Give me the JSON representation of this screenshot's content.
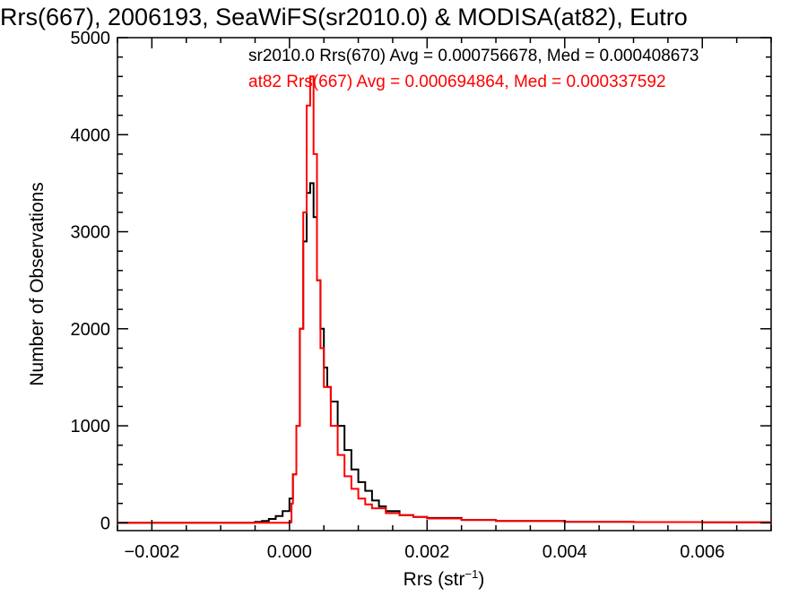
{
  "chart_data": {
    "type": "histogram",
    "title": "Rrs(667), 2006193, SeaWiFS(sr2010.0) & MODISA(at82), Eutro",
    "xlabel": "Rrs (str",
    "xlabel_superscript": "−1",
    "xlabel_suffix": ")",
    "ylabel": "Number of Observations",
    "xlim": [
      -0.0025,
      0.007
    ],
    "ylim": [
      -80,
      5000
    ],
    "x_ticks": [
      -0.002,
      0.0,
      0.002,
      0.004,
      0.006
    ],
    "x_tick_labels": [
      "−0.002",
      "0.000",
      "0.002",
      "0.004",
      "0.006"
    ],
    "y_ticks": [
      0,
      1000,
      2000,
      3000,
      4000,
      5000
    ],
    "y_tick_labels": [
      "0",
      "1000",
      "2000",
      "3000",
      "4000",
      "5000"
    ],
    "grid": false,
    "legend_position": "top-right",
    "series": [
      {
        "name": "sr2010.0 Rrs(670) Avg = 0.000756678, Med = 0.000408673",
        "color": "#000000",
        "points": [
          [
            -0.0025,
            0
          ],
          [
            -0.0006,
            0
          ],
          [
            -0.0005,
            10
          ],
          [
            -0.0004,
            20
          ],
          [
            -0.0003,
            40
          ],
          [
            -0.0002,
            70
          ],
          [
            -0.0001,
            120
          ],
          [
            0.0,
            250
          ],
          [
            5e-05,
            500
          ],
          [
            0.0001,
            1000
          ],
          [
            0.00015,
            2000
          ],
          [
            0.0002,
            2900
          ],
          [
            0.00025,
            3400
          ],
          [
            0.0003,
            3500
          ],
          [
            0.00035,
            3150
          ],
          [
            0.0004,
            2500
          ],
          [
            0.00045,
            2000
          ],
          [
            0.0005,
            1600
          ],
          [
            0.00055,
            1400
          ],
          [
            0.0006,
            1250
          ],
          [
            0.0007,
            1000
          ],
          [
            0.0008,
            750
          ],
          [
            0.0009,
            550
          ],
          [
            0.001,
            420
          ],
          [
            0.0011,
            330
          ],
          [
            0.0012,
            230
          ],
          [
            0.0013,
            170
          ],
          [
            0.0014,
            120
          ],
          [
            0.0016,
            80
          ],
          [
            0.0018,
            60
          ],
          [
            0.002,
            50
          ],
          [
            0.0025,
            30
          ],
          [
            0.003,
            20
          ],
          [
            0.004,
            10
          ],
          [
            0.005,
            8
          ],
          [
            0.006,
            5
          ],
          [
            0.007,
            3
          ]
        ]
      },
      {
        "name": "at82 Rrs(667) Avg = 0.000694864, Med = 0.000337592",
        "color": "#ff0000",
        "points": [
          [
            -0.0025,
            0
          ],
          [
            -0.0001,
            0
          ],
          [
            0.0,
            5
          ],
          [
            3e-05,
            200
          ],
          [
            5e-05,
            500
          ],
          [
            0.0001,
            1000
          ],
          [
            0.00015,
            2000
          ],
          [
            0.0002,
            3200
          ],
          [
            0.00025,
            4300
          ],
          [
            0.0003,
            4600
          ],
          [
            0.00035,
            3800
          ],
          [
            0.0004,
            2500
          ],
          [
            0.00045,
            1800
          ],
          [
            0.0005,
            1400
          ],
          [
            0.0006,
            1000
          ],
          [
            0.0007,
            700
          ],
          [
            0.0008,
            480
          ],
          [
            0.0009,
            350
          ],
          [
            0.001,
            250
          ],
          [
            0.0011,
            190
          ],
          [
            0.0012,
            150
          ],
          [
            0.0014,
            100
          ],
          [
            0.0016,
            80
          ],
          [
            0.0018,
            60
          ],
          [
            0.002,
            45
          ],
          [
            0.0025,
            30
          ],
          [
            0.003,
            20
          ],
          [
            0.004,
            12
          ],
          [
            0.005,
            8
          ],
          [
            0.006,
            5
          ],
          [
            0.007,
            3
          ]
        ]
      }
    ]
  }
}
